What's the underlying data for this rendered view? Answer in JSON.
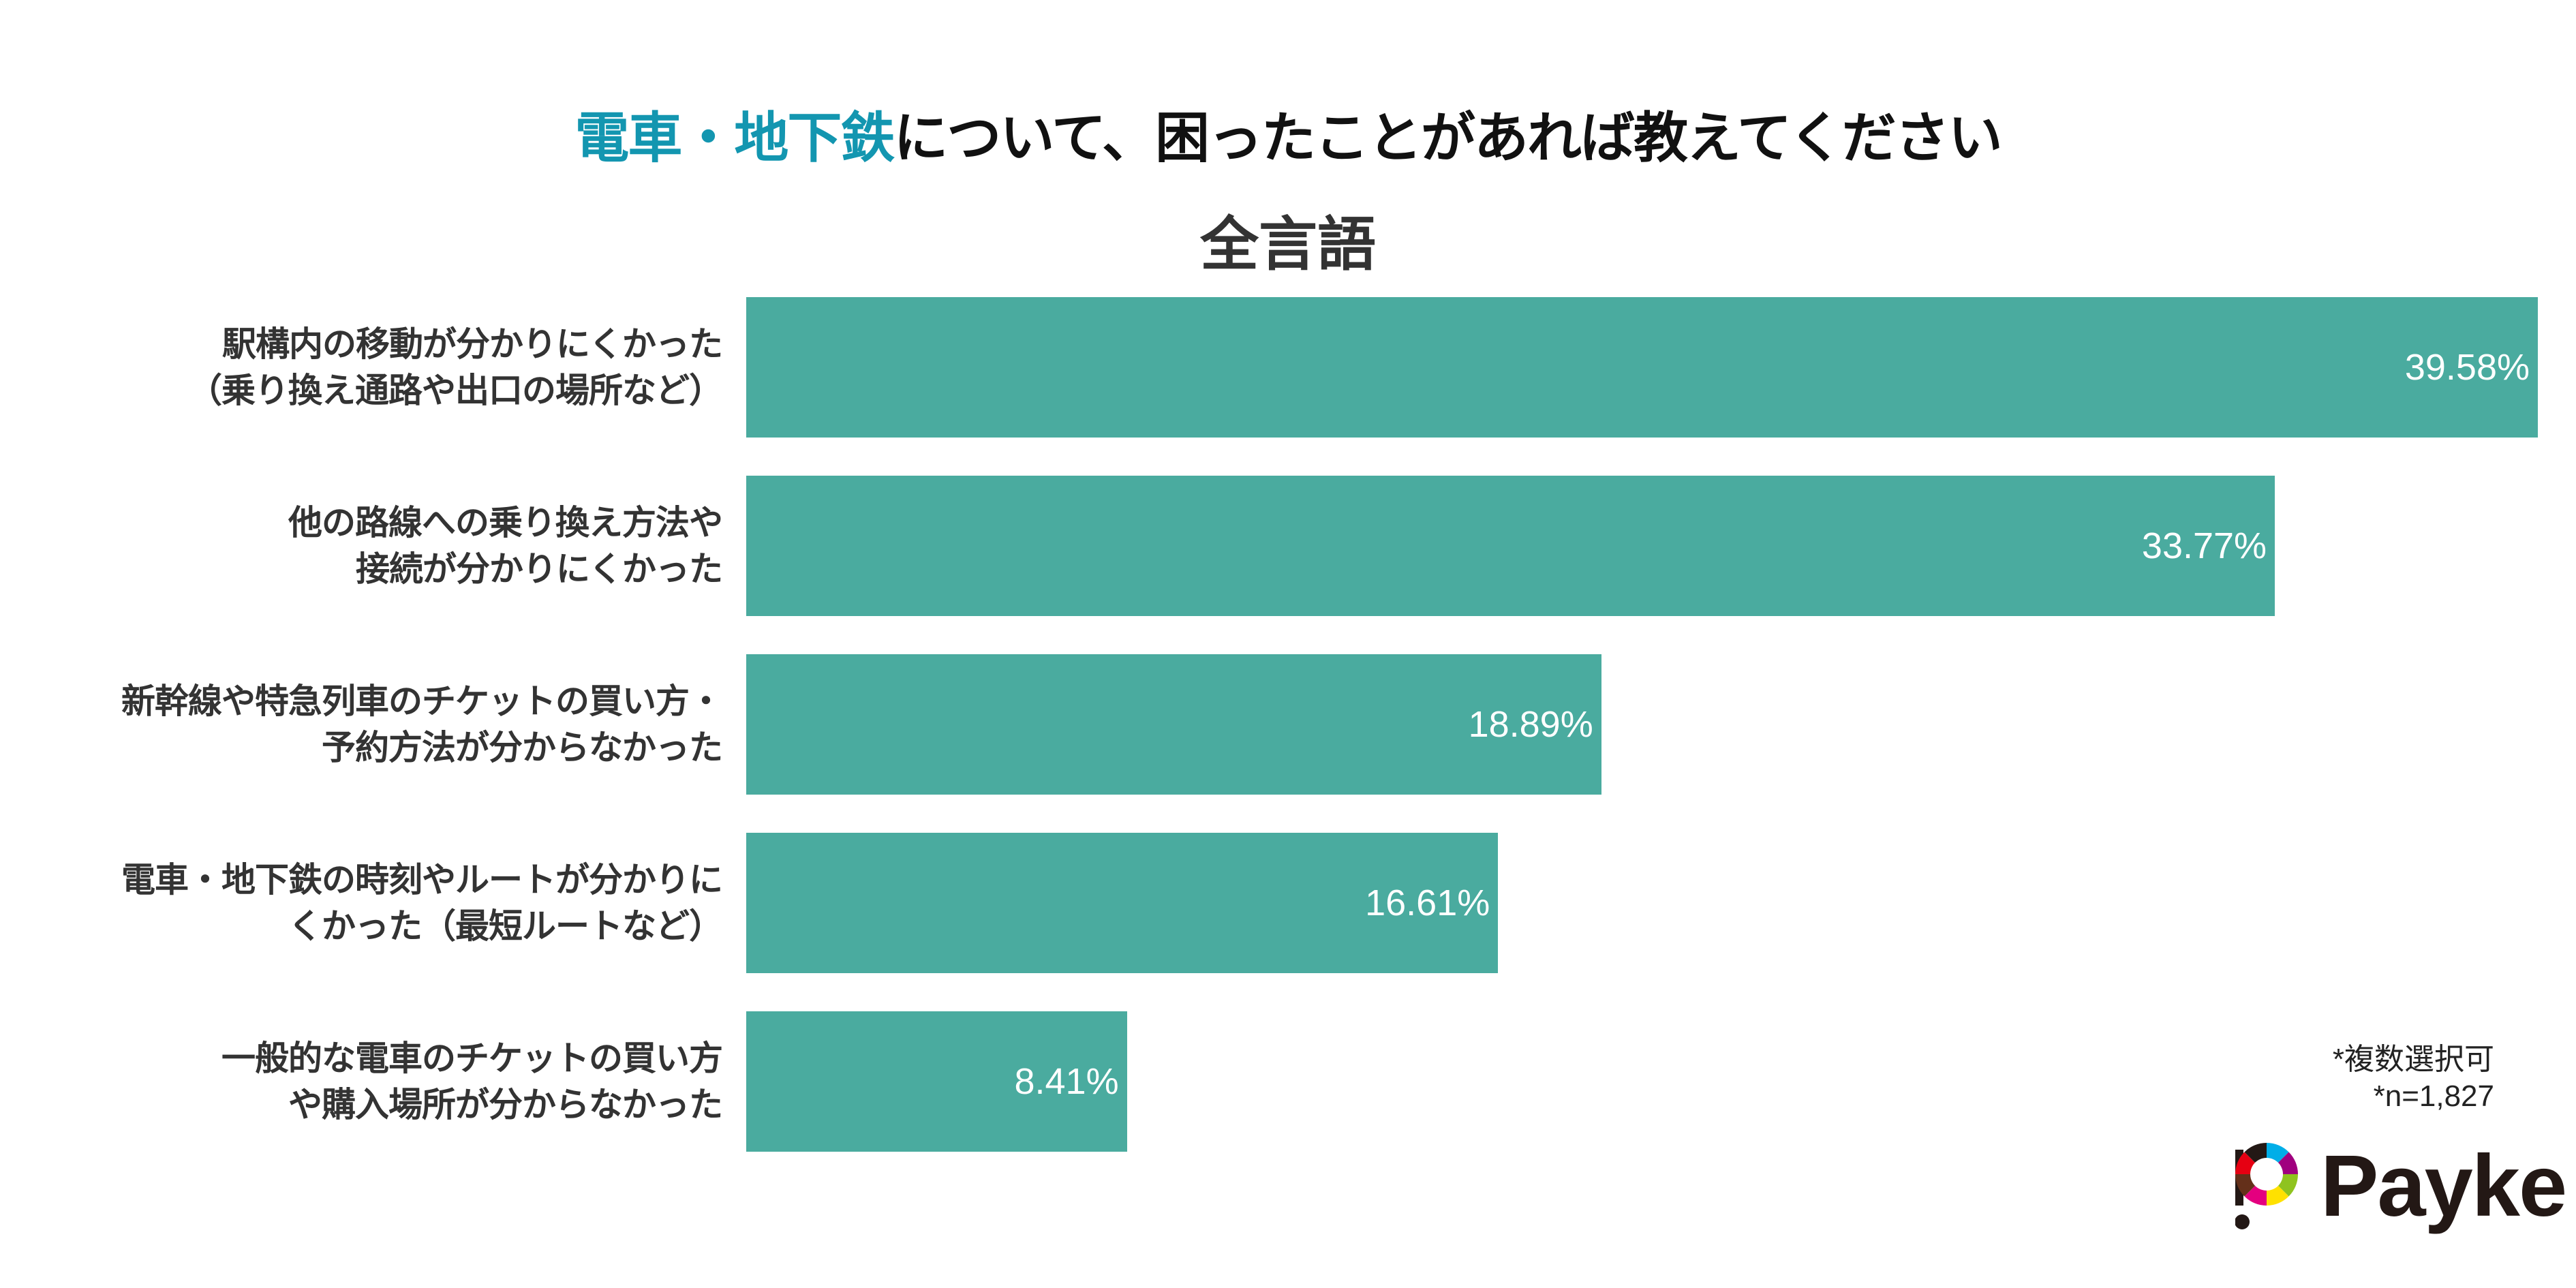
{
  "title": {
    "highlight": "電車・地下鉄",
    "rest": "について、困ったことがあれば教えてください"
  },
  "subtitle": "全言語",
  "notes": [
    "*複数選択可",
    "*n=1,827"
  ],
  "logo": {
    "text": "Payke"
  },
  "colors": {
    "bar": "#4aab9f",
    "title_highlight": "#1396b0",
    "label": "#333333"
  },
  "chart_data": {
    "type": "bar",
    "orientation": "horizontal",
    "title": "電車・地下鉄について、困ったことがあれば教えてください",
    "subtitle": "全言語",
    "categories": [
      [
        "駅構内の移動が分かりにくかった",
        "（乗り換え通路や出口の場所など）"
      ],
      [
        "他の路線への乗り換え方法や",
        "接続が分かりにくかった"
      ],
      [
        "新幹線や特急列車のチケットの買い方・",
        "予約方法が分からなかった"
      ],
      [
        "電車・地下鉄の時刻やルートが分かりに",
        "くかった（最短ルートなど）"
      ],
      [
        "一般的な電車のチケットの買い方",
        "や購入場所が分からなかった"
      ]
    ],
    "values": [
      39.58,
      33.77,
      18.89,
      16.61,
      8.41
    ],
    "value_labels": [
      "39.58%",
      "33.77%",
      "18.89%",
      "16.61%",
      "8.41%"
    ],
    "unit": "%",
    "xlim": [
      0,
      39.58
    ],
    "grid": false
  }
}
